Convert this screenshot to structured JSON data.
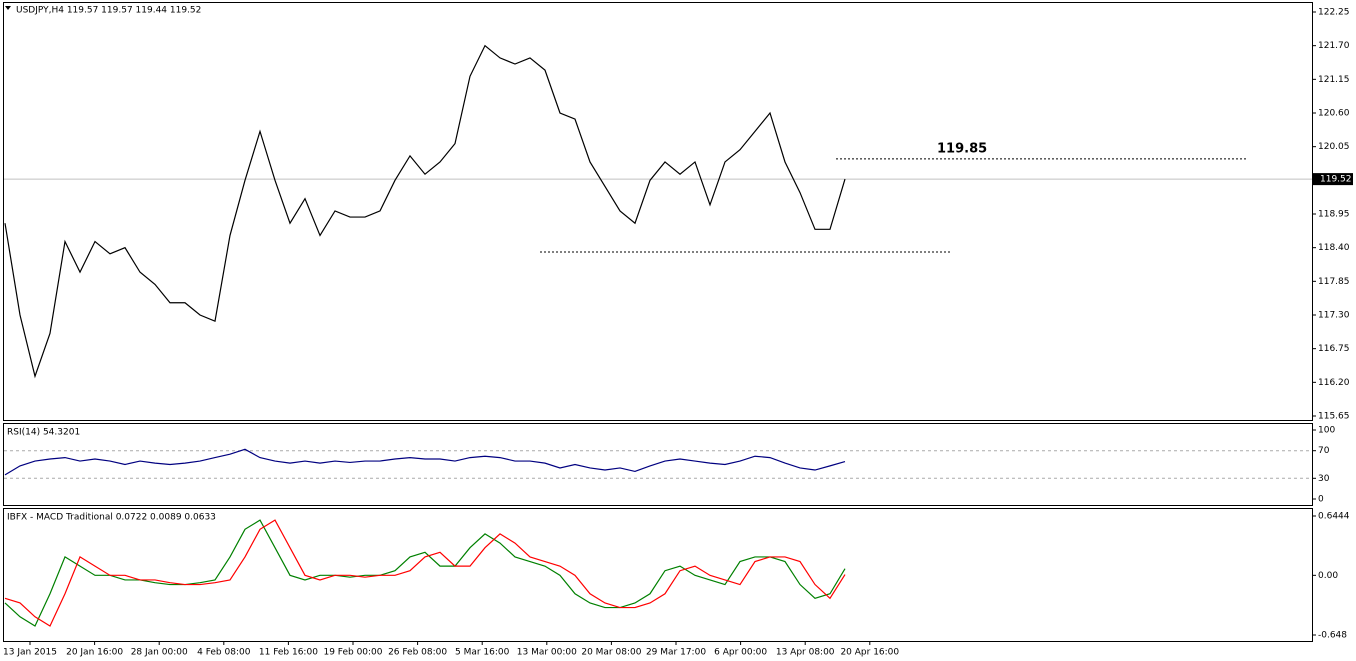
{
  "chart_data": [
    {
      "type": "line",
      "title": "USDJPY,H4  119.57 119.57 119.44 119.52",
      "color": "#000000",
      "values": [
        118.8,
        117.3,
        116.3,
        117.0,
        118.5,
        118.0,
        118.5,
        118.3,
        118.4,
        118.0,
        117.8,
        117.5,
        117.5,
        117.3,
        117.2,
        118.6,
        119.5,
        120.3,
        119.5,
        118.8,
        119.2,
        118.6,
        119.0,
        118.9,
        118.9,
        119.0,
        119.5,
        119.9,
        119.6,
        119.8,
        120.1,
        121.2,
        121.7,
        121.5,
        121.4,
        121.5,
        121.3,
        120.6,
        120.5,
        119.8,
        119.4,
        119.0,
        118.8,
        119.5,
        119.8,
        119.6,
        119.8,
        119.1,
        119.8,
        120.0,
        120.3,
        120.6,
        119.8,
        119.3,
        118.7,
        118.7,
        119.52
      ],
      "ylim": [
        115.65,
        122.25
      ],
      "yticks": [
        122.25,
        {
          "value": 121.7,
          "label": "121.70"
        },
        121.15,
        {
          "value": 120.6,
          "label": "120.60"
        },
        120.05,
        {
          "value": 119.5,
          "label": "119.50"
        },
        118.95,
        {
          "value": 118.4,
          "label": "118.40"
        },
        117.85,
        {
          "value": 117.3,
          "label": "117.30"
        },
        116.75,
        {
          "value": 116.2,
          "label": "116.20"
        },
        115.65
      ],
      "current": 119.52,
      "resistance": 119.85,
      "support": 118.33
    },
    {
      "type": "line",
      "title": "RSI(14) 54.3201",
      "color": "#000080",
      "values": [
        35,
        48,
        55,
        58,
        60,
        55,
        58,
        55,
        50,
        55,
        52,
        50,
        52,
        55,
        60,
        65,
        72,
        60,
        55,
        52,
        55,
        52,
        55,
        53,
        55,
        55,
        58,
        60,
        58,
        58,
        55,
        60,
        62,
        60,
        55,
        55,
        52,
        45,
        50,
        45,
        42,
        45,
        40,
        48,
        55,
        58,
        55,
        52,
        50,
        55,
        62,
        60,
        52,
        45,
        42,
        48,
        54.3201
      ],
      "ylim": [
        0,
        100
      ],
      "yticks": [
        100,
        70,
        30,
        0
      ],
      "levels": [
        70,
        30
      ]
    },
    {
      "type": "line",
      "title": "IBFX - MACD Traditional 0.0722 0.0089 0.0633",
      "series": [
        {
          "color": "#008000",
          "values": [
            -0.3,
            -0.45,
            -0.55,
            -0.2,
            0.2,
            0.1,
            0.0,
            0.0,
            -0.05,
            -0.05,
            -0.08,
            -0.1,
            -0.1,
            -0.08,
            -0.05,
            0.2,
            0.5,
            0.6,
            0.3,
            0.0,
            -0.05,
            0.0,
            0.0,
            -0.02,
            0.0,
            0.0,
            0.05,
            0.2,
            0.25,
            0.1,
            0.1,
            0.3,
            0.45,
            0.35,
            0.2,
            0.15,
            0.1,
            0.0,
            -0.2,
            -0.3,
            -0.35,
            -0.35,
            -0.3,
            -0.2,
            0.05,
            0.1,
            0.0,
            -0.05,
            -0.1,
            0.15,
            0.2,
            0.2,
            0.15,
            -0.1,
            -0.25,
            -0.2,
            0.0722
          ]
        },
        {
          "color": "#ff0000",
          "values": [
            -0.25,
            -0.3,
            -0.45,
            -0.55,
            -0.2,
            0.2,
            0.1,
            0.0,
            0.0,
            -0.05,
            -0.05,
            -0.08,
            -0.1,
            -0.1,
            -0.08,
            -0.05,
            0.2,
            0.5,
            0.6,
            0.3,
            0.0,
            -0.05,
            0.0,
            0.0,
            -0.02,
            0.0,
            0.0,
            0.05,
            0.2,
            0.25,
            0.1,
            0.1,
            0.3,
            0.45,
            0.35,
            0.2,
            0.15,
            0.1,
            0.0,
            -0.2,
            -0.3,
            -0.35,
            -0.35,
            -0.3,
            -0.2,
            0.05,
            0.1,
            0.0,
            -0.05,
            -0.1,
            0.15,
            0.2,
            0.2,
            0.15,
            -0.1,
            -0.25,
            0.0089
          ]
        }
      ],
      "ylim": [
        -0.648,
        0.6444
      ],
      "yticks": [
        0.6444,
        {
          "value": 0,
          "label": "0.00"
        },
        -0.648
      ],
      "x_labels": [
        "13 Jan 2015",
        "20 Jan 16:00",
        "28 Jan 00:00",
        "4 Feb 08:00",
        "11 Feb 16:00",
        "19 Feb 00:00",
        "26 Feb 08:00",
        "5 Mar 16:00",
        "13 Mar 00:00",
        "20 Mar 08:00",
        "29 Mar 17:00",
        "6 Apr 00:00",
        "13 Apr 08:00",
        "20 Apr 16:00"
      ]
    }
  ]
}
